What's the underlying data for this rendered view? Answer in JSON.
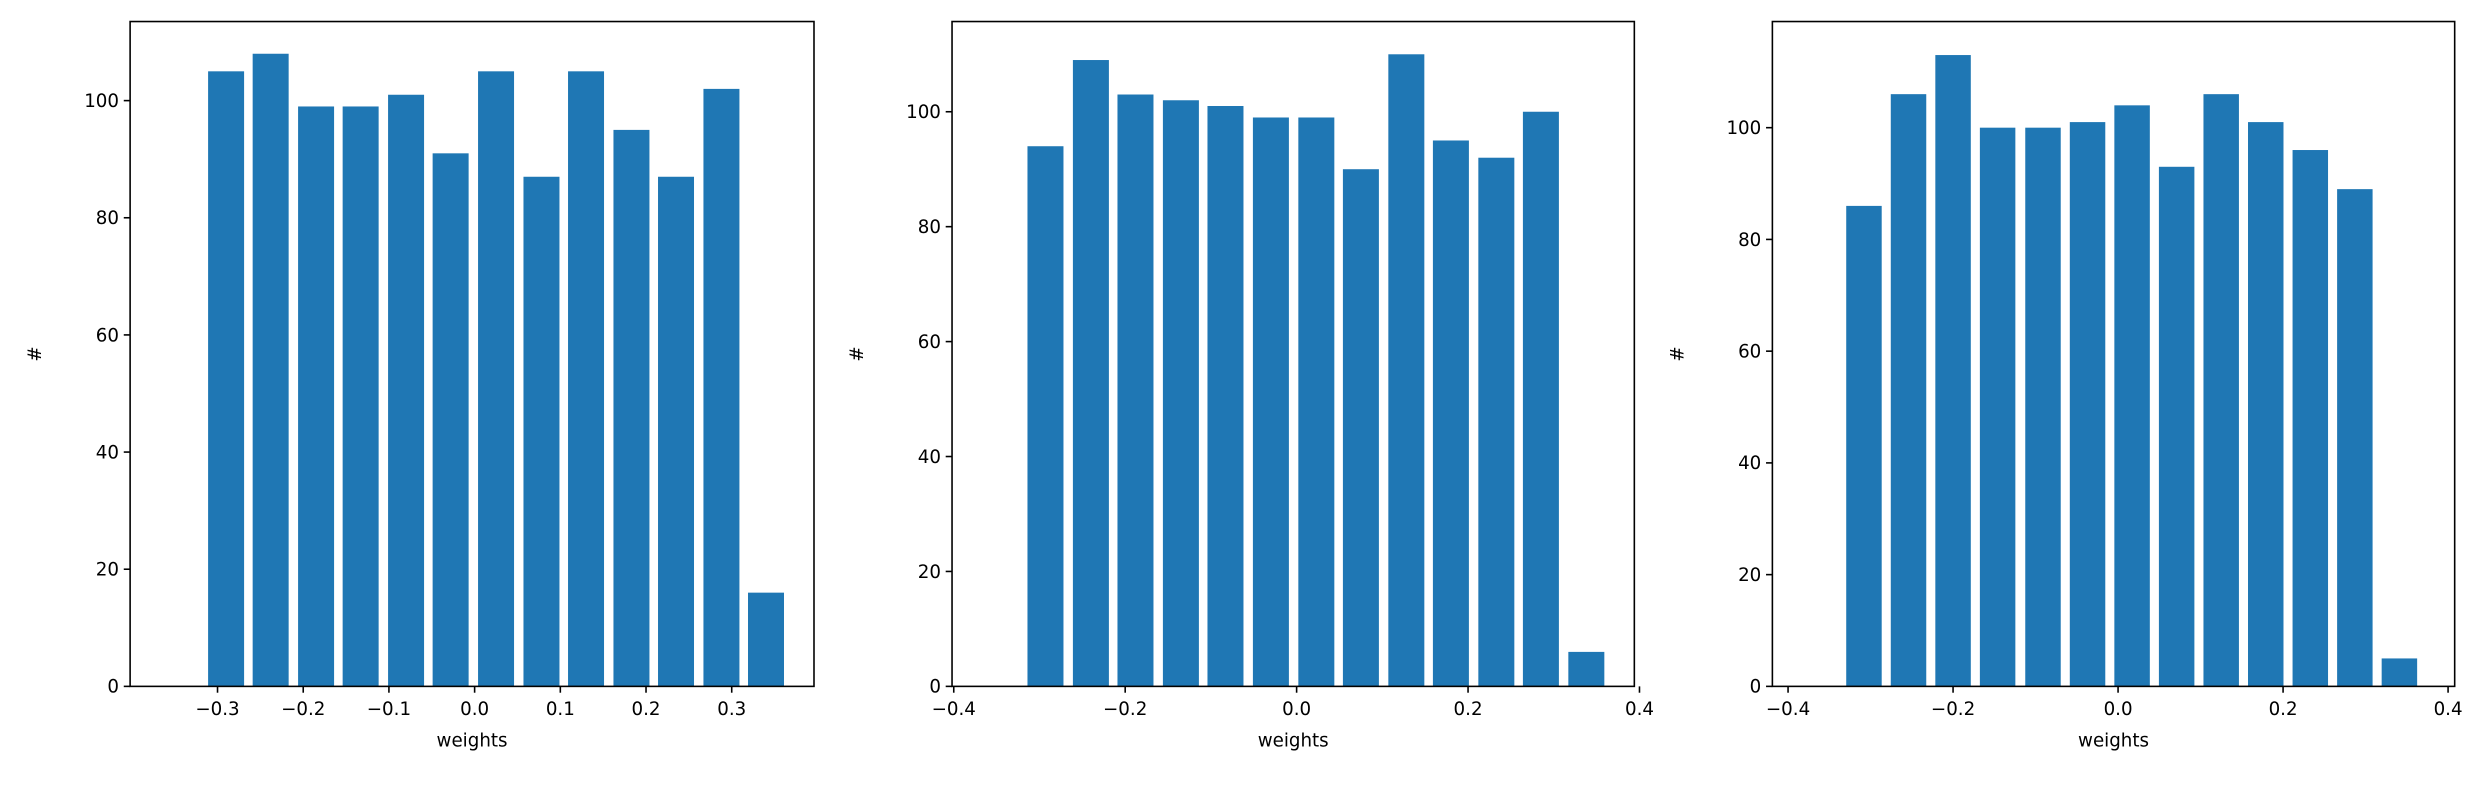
{
  "chart_data": [
    {
      "type": "bar",
      "color": "#1f77b4",
      "bar_width": 0.042,
      "x": [
        -0.29,
        -0.238,
        -0.185,
        -0.133,
        -0.08,
        -0.028,
        0.025,
        0.078,
        0.13,
        0.183,
        0.235,
        0.288,
        0.34
      ],
      "values": [
        105,
        108,
        99,
        99,
        101,
        91,
        105,
        87,
        105,
        95,
        87,
        102,
        16
      ],
      "xlabel": "weights",
      "ylabel": "#",
      "xlim": [
        -0.402,
        0.396
      ],
      "ylim": [
        0,
        113.5
      ],
      "xticks": [
        {
          "value": -0.3,
          "label": "−0.3"
        },
        {
          "value": -0.2,
          "label": "−0.2"
        },
        {
          "value": -0.1,
          "label": "−0.1"
        },
        {
          "value": 0,
          "label": "0.0"
        },
        {
          "value": 0.1,
          "label": "0.1"
        },
        {
          "value": 0.2,
          "label": "0.2"
        },
        {
          "value": 0.3,
          "label": "0.3"
        }
      ],
      "yticks": [
        0,
        20,
        40,
        60,
        80,
        100
      ]
    },
    {
      "type": "bar",
      "color": "#1f77b4",
      "bar_width": 0.042,
      "x": [
        -0.293,
        -0.24,
        -0.188,
        -0.135,
        -0.083,
        -0.03,
        0.023,
        0.075,
        0.128,
        0.18,
        0.233,
        0.285,
        0.338
      ],
      "values": [
        94,
        109,
        103,
        102,
        101,
        99,
        99,
        90,
        110,
        95,
        92,
        100,
        6
      ],
      "xlabel": "weights",
      "ylabel": "#",
      "xlim": [
        -0.402,
        0.394
      ],
      "ylim": [
        0,
        115.7
      ],
      "xticks": [
        {
          "value": -0.4,
          "label": "−0.4"
        },
        {
          "value": -0.2,
          "label": "−0.2"
        },
        {
          "value": 0,
          "label": "0.0"
        },
        {
          "value": 0.2,
          "label": "0.2"
        },
        {
          "value": 0.4,
          "label": "0.4"
        }
      ],
      "yticks": [
        0,
        20,
        40,
        60,
        80,
        100
      ]
    },
    {
      "type": "bar",
      "color": "#1f77b4",
      "bar_width": 0.043,
      "x": [
        -0.308,
        -0.254,
        -0.2,
        -0.146,
        -0.091,
        -0.037,
        0.017,
        0.071,
        0.125,
        0.179,
        0.233,
        0.287,
        0.341
      ],
      "values": [
        86,
        106,
        113,
        100,
        100,
        101,
        104,
        93,
        106,
        101,
        96,
        89,
        5
      ],
      "xlabel": "weights",
      "ylabel": "#",
      "xlim": [
        -0.419,
        0.408
      ],
      "ylim": [
        0,
        119
      ],
      "xticks": [
        {
          "value": -0.4,
          "label": "−0.4"
        },
        {
          "value": -0.2,
          "label": "−0.2"
        },
        {
          "value": 0,
          "label": "0.0"
        },
        {
          "value": 0.2,
          "label": "0.2"
        },
        {
          "value": 0.4,
          "label": "0.4"
        }
      ],
      "yticks": [
        0,
        20,
        40,
        60,
        80,
        100
      ]
    }
  ]
}
